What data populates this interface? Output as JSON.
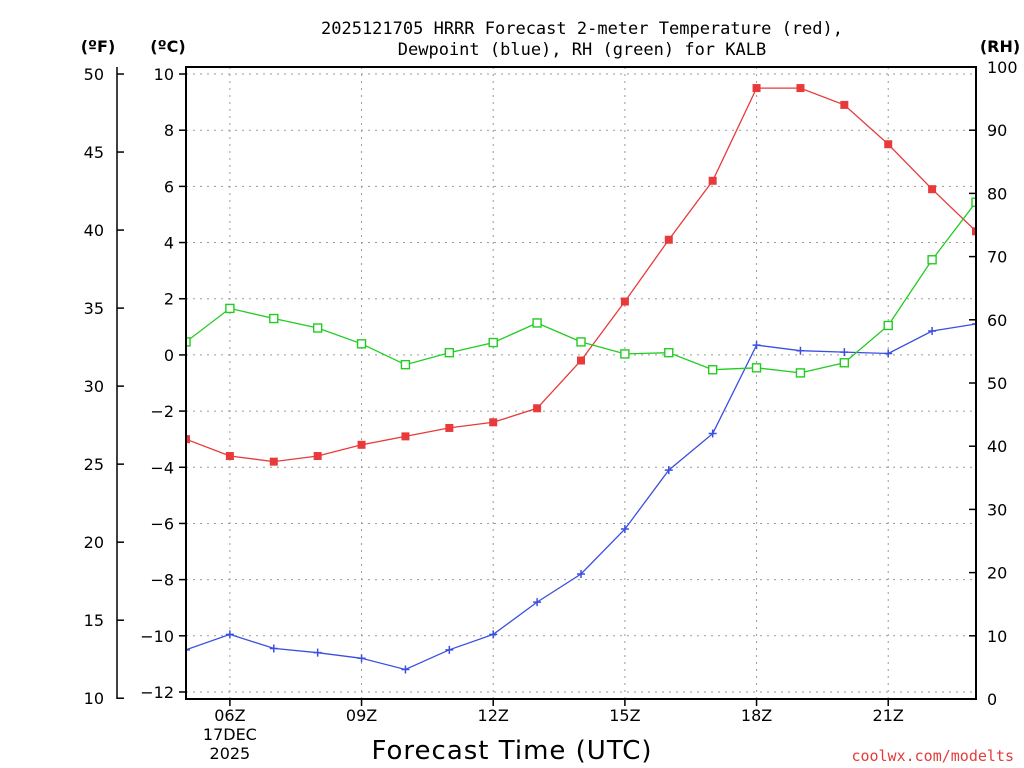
{
  "chart_data": {
    "type": "line",
    "title": [
      "2025121705 HRRR Forecast 2-meter Temperature (red),",
      "Dewpoint (blue), RH (green) for KALB"
    ],
    "xlabel": "Forecast Time (UTC)",
    "unit_labels": {
      "fahrenheit": "(ºF)",
      "celsius": "(ºC)",
      "rh": "(RH)"
    },
    "x_hours": [
      5,
      6,
      7,
      8,
      9,
      10,
      11,
      12,
      13,
      14,
      15,
      16,
      17,
      18,
      19,
      20,
      21,
      22,
      23
    ],
    "x_ticks": [
      {
        "hour": 6,
        "lines": [
          "06Z",
          "17DEC",
          "2025"
        ]
      },
      {
        "hour": 9,
        "lines": [
          "09Z"
        ]
      },
      {
        "hour": 12,
        "lines": [
          "12Z"
        ]
      },
      {
        "hour": 15,
        "lines": [
          "15Z"
        ]
      },
      {
        "hour": 18,
        "lines": [
          "18Z"
        ]
      },
      {
        "hour": 21,
        "lines": [
          "21Z"
        ]
      }
    ],
    "xlim": [
      5,
      23
    ],
    "y_celsius": {
      "range": [
        -12.25,
        10.25
      ],
      "ticks": [
        -12,
        -10,
        -8,
        -6,
        -4,
        -2,
        0,
        2,
        4,
        6,
        8,
        10
      ]
    },
    "y_fahrenheit": {
      "range": [
        9.95,
        50.45
      ],
      "ticks": [
        10,
        15,
        20,
        25,
        30,
        35,
        40,
        45,
        50
      ]
    },
    "y_rh": {
      "range": [
        0,
        100
      ],
      "ticks": [
        0,
        10,
        20,
        30,
        40,
        50,
        60,
        70,
        80,
        90,
        100
      ]
    },
    "series": [
      {
        "name": "Temperature",
        "unit": "C",
        "color": "#e83a3a",
        "marker": "filled-square",
        "values": [
          -3.0,
          -3.6,
          -3.8,
          -3.6,
          -3.2,
          -2.9,
          -2.6,
          -2.4,
          -1.9,
          -0.2,
          1.9,
          4.1,
          6.2,
          9.5,
          9.5,
          8.9,
          7.5,
          5.9,
          4.4
        ]
      },
      {
        "name": "Dewpoint",
        "unit": "C",
        "color": "#3a4fe0",
        "marker": "plus",
        "values": [
          -10.5,
          -9.95,
          -10.45,
          -10.6,
          -10.8,
          -11.2,
          -10.5,
          -9.95,
          -8.8,
          -7.8,
          -6.2,
          -4.1,
          -2.8,
          0.35,
          0.15,
          0.1,
          0.05,
          0.85,
          1.1
        ]
      },
      {
        "name": "RH",
        "unit": "%",
        "color": "#22cc22",
        "marker": "open-square",
        "values": [
          56.5,
          61.8,
          60.2,
          58.7,
          56.2,
          52.9,
          54.8,
          56.4,
          59.5,
          56.5,
          54.6,
          54.8,
          52.1,
          52.4,
          51.6,
          53.2,
          59.1,
          69.5,
          78.6
        ]
      }
    ],
    "credit": "coolwx.com/modelts"
  }
}
